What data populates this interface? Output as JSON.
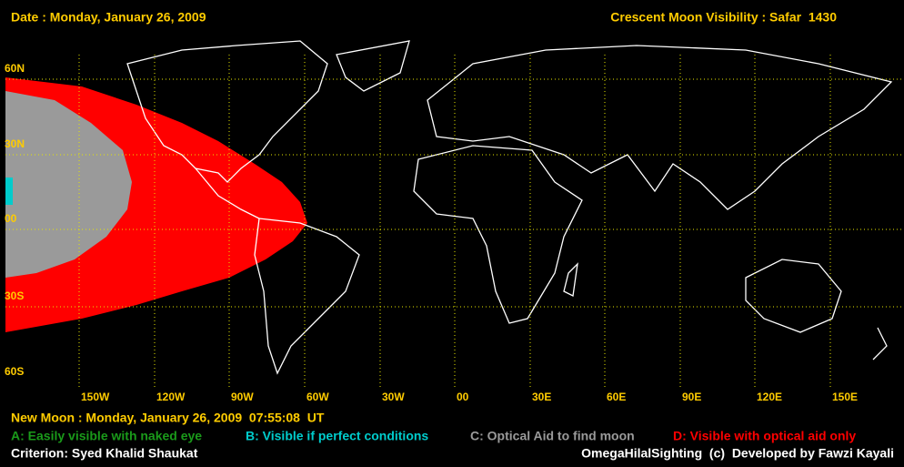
{
  "header": {
    "date": "Date : Monday, January 26, 2009",
    "title": "Crescent Moon Visibility : Safar  1430"
  },
  "grid": {
    "lat_labels": [
      "60N",
      "30N",
      "00",
      "30S",
      "60S"
    ],
    "lon_labels": [
      "150W",
      "120W",
      "90W",
      "60W",
      "30W",
      "00",
      "30E",
      "60E",
      "90E",
      "120E",
      "150E"
    ]
  },
  "footer": {
    "new_moon": "New Moon : Monday, January 26, 2009  07:55:08  UT",
    "legend": [
      {
        "text": "A: Easily visible with naked eye",
        "color": "#1a9a1a"
      },
      {
        "text": "B: Visible if perfect conditions",
        "color": "#00cccc"
      },
      {
        "text": "C: Optical Aid to find moon",
        "color": "#9a9a9a"
      },
      {
        "text": "D: Visible with optical aid only",
        "color": "#ff0000"
      }
    ],
    "criterion": "Criterion: Syed Khalid Shaukat",
    "credit": "OmegaHilalSighting  (c)  Developed by Fawzi Kayali"
  }
}
